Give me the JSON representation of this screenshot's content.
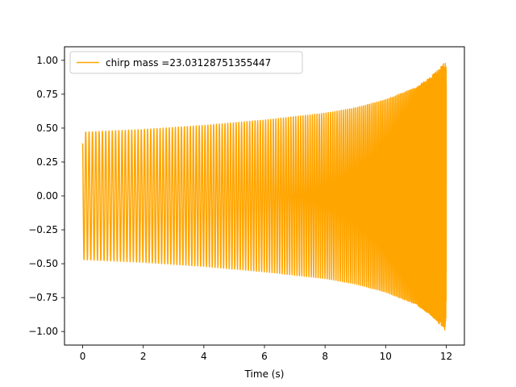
{
  "chart_data": {
    "type": "line",
    "title": "",
    "xlabel": "Time (s)",
    "ylabel": "",
    "xlim": [
      -0.6,
      12.6
    ],
    "ylim": [
      -1.1,
      1.1
    ],
    "xticks": [
      0,
      2,
      4,
      6,
      8,
      10,
      12
    ],
    "xtick_labels": [
      "0",
      "2",
      "4",
      "6",
      "8",
      "10",
      "12"
    ],
    "yticks": [
      1.0,
      0.75,
      0.5,
      0.25,
      0.0,
      -0.25,
      -0.5,
      -0.75,
      -1.0
    ],
    "ytick_labels": [
      "1.00",
      "0.75",
      "0.50",
      "0.25",
      "0.00",
      "−0.25",
      "−0.50",
      "−0.75",
      "−1.00"
    ],
    "grid": false,
    "legend_position": "upper-left",
    "series": [
      {
        "name": "chirp mass =23.03128751355447",
        "color": "#ffa500",
        "signal": "chirp",
        "t_start": 0,
        "t_end": 12,
        "amplitude_start": 0.47,
        "amplitude_end": 1.0,
        "cycles_total": 172,
        "envelope": [
          [
            0,
            0.47
          ],
          [
            2,
            0.49
          ],
          [
            4,
            0.52
          ],
          [
            6,
            0.56
          ],
          [
            8,
            0.61
          ],
          [
            9,
            0.65
          ],
          [
            10,
            0.71
          ],
          [
            11,
            0.8
          ],
          [
            11.5,
            0.88
          ],
          [
            12,
            1.0
          ]
        ]
      }
    ]
  }
}
